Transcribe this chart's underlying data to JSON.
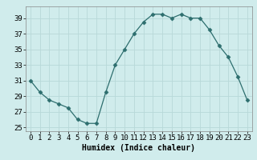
{
  "x": [
    0,
    1,
    2,
    3,
    4,
    5,
    6,
    7,
    8,
    9,
    10,
    11,
    12,
    13,
    14,
    15,
    16,
    17,
    18,
    19,
    20,
    21,
    22,
    23
  ],
  "y": [
    31,
    29.5,
    28.5,
    28,
    27.5,
    26,
    25.5,
    25.5,
    29.5,
    33,
    35,
    37,
    38.5,
    39.5,
    39.5,
    39,
    39.5,
    39,
    39,
    37.5,
    35.5,
    34,
    31.5,
    28.5
  ],
  "line_color": "#2d6e6e",
  "marker": "D",
  "marker_size": 2.5,
  "bg_color": "#d0ecec",
  "grid_color": "#b8d8d8",
  "xlabel": "Humidex (Indice chaleur)",
  "xlim": [
    -0.5,
    23.5
  ],
  "ylim": [
    24.5,
    40.5
  ],
  "yticks": [
    25,
    27,
    29,
    31,
    33,
    35,
    37,
    39
  ],
  "xticks": [
    0,
    1,
    2,
    3,
    4,
    5,
    6,
    7,
    8,
    9,
    10,
    11,
    12,
    13,
    14,
    15,
    16,
    17,
    18,
    19,
    20,
    21,
    22,
    23
  ],
  "label_fontsize": 7,
  "tick_fontsize": 6.5
}
